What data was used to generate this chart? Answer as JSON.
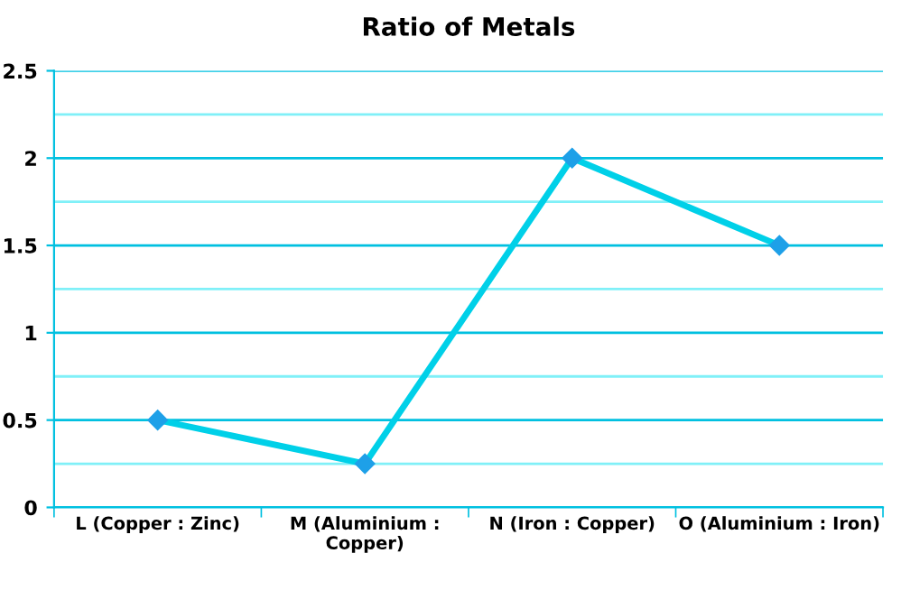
{
  "chart_data": {
    "type": "line",
    "title": "Ratio of Metals",
    "categories": [
      "L (Copper : Zinc)",
      "M (Aluminium :\nCopper)",
      "N (Iron : Copper)",
      "O (Aluminium : Iron)"
    ],
    "series": [
      {
        "color": "#00d0e8",
        "values": [
          0.5,
          0.25,
          2,
          1.5
        ]
      }
    ],
    "ylim": [
      0,
      2.5
    ],
    "yticks": [
      0,
      {
        "value": 0.25,
        "label": null
      },
      0.5,
      {
        "value": 0.75,
        "label": null
      },
      1,
      {
        "value": 1.25,
        "label": null
      },
      1.5,
      {
        "value": 1.75,
        "label": null
      },
      2,
      {
        "value": 2.25,
        "label": null
      },
      2.5
    ],
    "grid": "y",
    "marker": "diamond",
    "line_style": "solid",
    "legend": false
  }
}
